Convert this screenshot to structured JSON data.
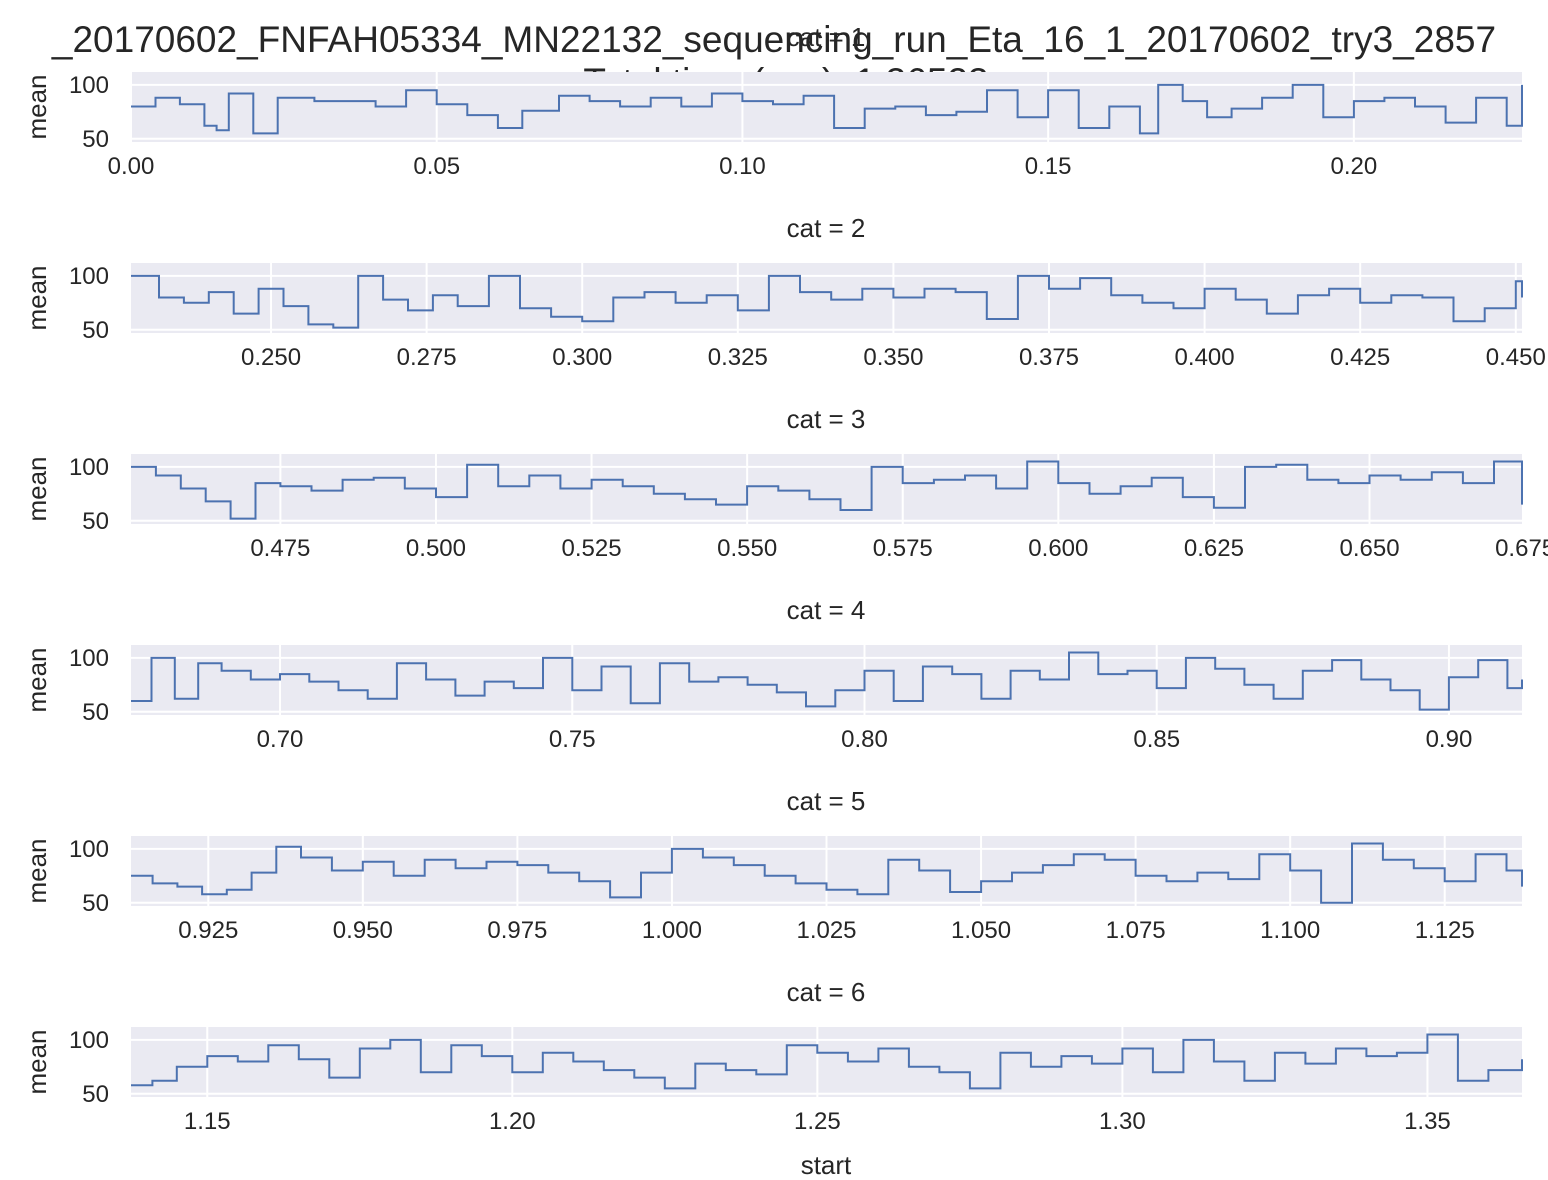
{
  "figure": {
    "title_line1": "_20170602_FNFAH05334_MN22132_sequencing_run_Eta_16_1_20170602_try3_2857",
    "title_line2": "Total time (sec): 1.36523",
    "xlabel": "start",
    "ylabel": "mean"
  },
  "colors": {
    "line": "#4c72b0",
    "panel_bg": "#eaeaf2",
    "grid": "#ffffff",
    "text": "#262626"
  },
  "chart_data": [
    {
      "type": "line",
      "title": "cat = 1",
      "xlim": [
        0.0,
        0.2275
      ],
      "ylim": [
        47,
        112
      ],
      "xticks": [
        "0.00",
        "0.05",
        "0.10",
        "0.15",
        "0.20"
      ],
      "yticks": [
        "100",
        "50"
      ],
      "xtick_values": [
        0.0,
        0.05,
        0.1,
        0.15,
        0.2
      ],
      "ytick_values": [
        100,
        50
      ],
      "x": [
        0.0,
        0.004,
        0.008,
        0.012,
        0.014,
        0.016,
        0.02,
        0.024,
        0.03,
        0.04,
        0.045,
        0.05,
        0.055,
        0.06,
        0.064,
        0.07,
        0.075,
        0.08,
        0.085,
        0.09,
        0.095,
        0.1,
        0.105,
        0.11,
        0.115,
        0.12,
        0.125,
        0.13,
        0.135,
        0.14,
        0.145,
        0.15,
        0.155,
        0.16,
        0.165,
        0.168,
        0.172,
        0.176,
        0.18,
        0.185,
        0.19,
        0.195,
        0.2,
        0.205,
        0.21,
        0.215,
        0.22,
        0.225,
        0.2275
      ],
      "y": [
        80,
        88,
        82,
        62,
        58,
        92,
        55,
        88,
        85,
        80,
        95,
        82,
        72,
        60,
        76,
        90,
        85,
        80,
        88,
        80,
        92,
        85,
        82,
        90,
        60,
        78,
        80,
        72,
        75,
        95,
        70,
        95,
        60,
        80,
        55,
        100,
        85,
        70,
        78,
        88,
        100,
        70,
        85,
        88,
        80,
        65,
        88,
        62,
        100
      ]
    },
    {
      "type": "line",
      "title": "cat = 2",
      "xlim": [
        0.2275,
        0.451
      ],
      "ylim": [
        47,
        112
      ],
      "xticks": [
        "0.250",
        "0.275",
        "0.300",
        "0.325",
        "0.350",
        "0.375",
        "0.400",
        "0.425",
        "0.450"
      ],
      "yticks": [
        "100",
        "50"
      ],
      "xtick_values": [
        0.25,
        0.275,
        0.3,
        0.325,
        0.35,
        0.375,
        0.4,
        0.425,
        0.45
      ],
      "ytick_values": [
        100,
        50
      ],
      "x": [
        0.2275,
        0.232,
        0.236,
        0.24,
        0.244,
        0.248,
        0.252,
        0.256,
        0.26,
        0.264,
        0.268,
        0.272,
        0.276,
        0.28,
        0.285,
        0.29,
        0.295,
        0.3,
        0.305,
        0.31,
        0.315,
        0.32,
        0.325,
        0.33,
        0.335,
        0.34,
        0.345,
        0.35,
        0.355,
        0.36,
        0.365,
        0.37,
        0.375,
        0.38,
        0.385,
        0.39,
        0.395,
        0.4,
        0.405,
        0.41,
        0.415,
        0.42,
        0.425,
        0.43,
        0.435,
        0.44,
        0.445,
        0.45,
        0.451
      ],
      "y": [
        100,
        80,
        75,
        85,
        65,
        88,
        72,
        55,
        52,
        100,
        78,
        68,
        82,
        72,
        100,
        70,
        62,
        58,
        80,
        85,
        75,
        82,
        68,
        100,
        85,
        78,
        88,
        80,
        88,
        85,
        60,
        100,
        88,
        98,
        82,
        75,
        70,
        88,
        78,
        65,
        82,
        88,
        75,
        82,
        80,
        58,
        70,
        95,
        80
      ]
    },
    {
      "type": "line",
      "title": "cat = 3",
      "xlim": [
        0.451,
        0.6745
      ],
      "ylim": [
        47,
        112
      ],
      "xticks": [
        "0.475",
        "0.500",
        "0.525",
        "0.550",
        "0.575",
        "0.600",
        "0.625",
        "0.650",
        "0.675"
      ],
      "yticks": [
        "100",
        "50"
      ],
      "xtick_values": [
        0.475,
        0.5,
        0.525,
        0.55,
        0.575,
        0.6,
        0.625,
        0.65,
        0.675
      ],
      "ytick_values": [
        100,
        50
      ],
      "x": [
        0.451,
        0.455,
        0.459,
        0.463,
        0.467,
        0.471,
        0.475,
        0.48,
        0.485,
        0.49,
        0.495,
        0.5,
        0.505,
        0.51,
        0.515,
        0.52,
        0.525,
        0.53,
        0.535,
        0.54,
        0.545,
        0.55,
        0.555,
        0.56,
        0.565,
        0.57,
        0.575,
        0.58,
        0.585,
        0.59,
        0.595,
        0.6,
        0.605,
        0.61,
        0.615,
        0.62,
        0.625,
        0.63,
        0.635,
        0.64,
        0.645,
        0.65,
        0.655,
        0.66,
        0.665,
        0.67,
        0.6745
      ],
      "y": [
        100,
        92,
        80,
        68,
        52,
        85,
        82,
        78,
        88,
        90,
        80,
        72,
        102,
        82,
        92,
        80,
        88,
        82,
        75,
        70,
        65,
        82,
        78,
        70,
        60,
        100,
        85,
        88,
        92,
        80,
        105,
        85,
        75,
        82,
        90,
        72,
        62,
        100,
        102,
        88,
        85,
        92,
        88,
        95,
        85,
        105,
        65
      ]
    },
    {
      "type": "line",
      "title": "cat = 4",
      "xlim": [
        0.6745,
        0.9125
      ],
      "ylim": [
        47,
        112
      ],
      "xticks": [
        "0.70",
        "0.75",
        "0.80",
        "0.85",
        "0.90"
      ],
      "yticks": [
        "100",
        "50"
      ],
      "xtick_values": [
        0.7,
        0.75,
        0.8,
        0.85,
        0.9
      ],
      "ytick_values": [
        100,
        50
      ],
      "x": [
        0.6745,
        0.678,
        0.682,
        0.686,
        0.69,
        0.695,
        0.7,
        0.705,
        0.71,
        0.715,
        0.72,
        0.725,
        0.73,
        0.735,
        0.74,
        0.745,
        0.75,
        0.755,
        0.76,
        0.765,
        0.77,
        0.775,
        0.78,
        0.785,
        0.79,
        0.795,
        0.8,
        0.805,
        0.81,
        0.815,
        0.82,
        0.825,
        0.83,
        0.835,
        0.84,
        0.845,
        0.85,
        0.855,
        0.86,
        0.865,
        0.87,
        0.875,
        0.88,
        0.885,
        0.89,
        0.895,
        0.9,
        0.905,
        0.91,
        0.9125
      ],
      "y": [
        60,
        100,
        62,
        95,
        88,
        80,
        85,
        78,
        70,
        62,
        95,
        80,
        65,
        78,
        72,
        100,
        70,
        92,
        58,
        95,
        78,
        82,
        75,
        68,
        55,
        70,
        88,
        60,
        92,
        85,
        62,
        88,
        80,
        105,
        85,
        88,
        72,
        100,
        90,
        75,
        62,
        88,
        98,
        80,
        70,
        52,
        82,
        98,
        72,
        80
      ]
    },
    {
      "type": "line",
      "title": "cat = 5",
      "xlim": [
        0.9125,
        1.1375
      ],
      "ylim": [
        47,
        112
      ],
      "xticks": [
        "0.925",
        "0.950",
        "0.975",
        "1.000",
        "1.025",
        "1.050",
        "1.075",
        "1.100",
        "1.125"
      ],
      "yticks": [
        "100",
        "50"
      ],
      "xtick_values": [
        0.925,
        0.95,
        0.975,
        1.0,
        1.025,
        1.05,
        1.075,
        1.1,
        1.125
      ],
      "ytick_values": [
        100,
        50
      ],
      "x": [
        0.9125,
        0.916,
        0.92,
        0.924,
        0.928,
        0.932,
        0.936,
        0.94,
        0.945,
        0.95,
        0.955,
        0.96,
        0.965,
        0.97,
        0.975,
        0.98,
        0.985,
        0.99,
        0.995,
        1.0,
        1.005,
        1.01,
        1.015,
        1.02,
        1.025,
        1.03,
        1.035,
        1.04,
        1.045,
        1.05,
        1.055,
        1.06,
        1.065,
        1.07,
        1.075,
        1.08,
        1.085,
        1.09,
        1.095,
        1.1,
        1.105,
        1.11,
        1.115,
        1.12,
        1.125,
        1.13,
        1.135,
        1.1375
      ],
      "y": [
        75,
        68,
        65,
        58,
        62,
        78,
        102,
        92,
        80,
        88,
        75,
        90,
        82,
        88,
        85,
        78,
        70,
        55,
        78,
        100,
        92,
        85,
        75,
        68,
        62,
        58,
        90,
        80,
        60,
        70,
        78,
        85,
        95,
        90,
        75,
        70,
        78,
        72,
        95,
        80,
        50,
        105,
        90,
        82,
        70,
        95,
        80,
        65
      ]
    },
    {
      "type": "line",
      "title": "cat = 6",
      "xlim": [
        1.1375,
        1.3655
      ],
      "ylim": [
        47,
        112
      ],
      "xticks": [
        "1.15",
        "1.20",
        "1.25",
        "1.30",
        "1.35"
      ],
      "yticks": [
        "100",
        "50"
      ],
      "xtick_values": [
        1.15,
        1.2,
        1.25,
        1.3,
        1.35
      ],
      "ytick_values": [
        100,
        50
      ],
      "x": [
        1.1375,
        1.141,
        1.145,
        1.15,
        1.155,
        1.16,
        1.165,
        1.17,
        1.175,
        1.18,
        1.185,
        1.19,
        1.195,
        1.2,
        1.205,
        1.21,
        1.215,
        1.22,
        1.225,
        1.23,
        1.235,
        1.24,
        1.245,
        1.25,
        1.255,
        1.26,
        1.265,
        1.27,
        1.275,
        1.28,
        1.285,
        1.29,
        1.295,
        1.3,
        1.305,
        1.31,
        1.315,
        1.32,
        1.325,
        1.33,
        1.335,
        1.34,
        1.345,
        1.35,
        1.355,
        1.36,
        1.3655
      ],
      "y": [
        58,
        62,
        75,
        85,
        80,
        95,
        82,
        65,
        92,
        100,
        70,
        95,
        85,
        70,
        88,
        80,
        72,
        65,
        55,
        78,
        72,
        68,
        95,
        88,
        80,
        92,
        75,
        70,
        55,
        88,
        75,
        85,
        78,
        92,
        70,
        100,
        80,
        62,
        88,
        78,
        92,
        85,
        88,
        105,
        62,
        72,
        82
      ]
    }
  ]
}
